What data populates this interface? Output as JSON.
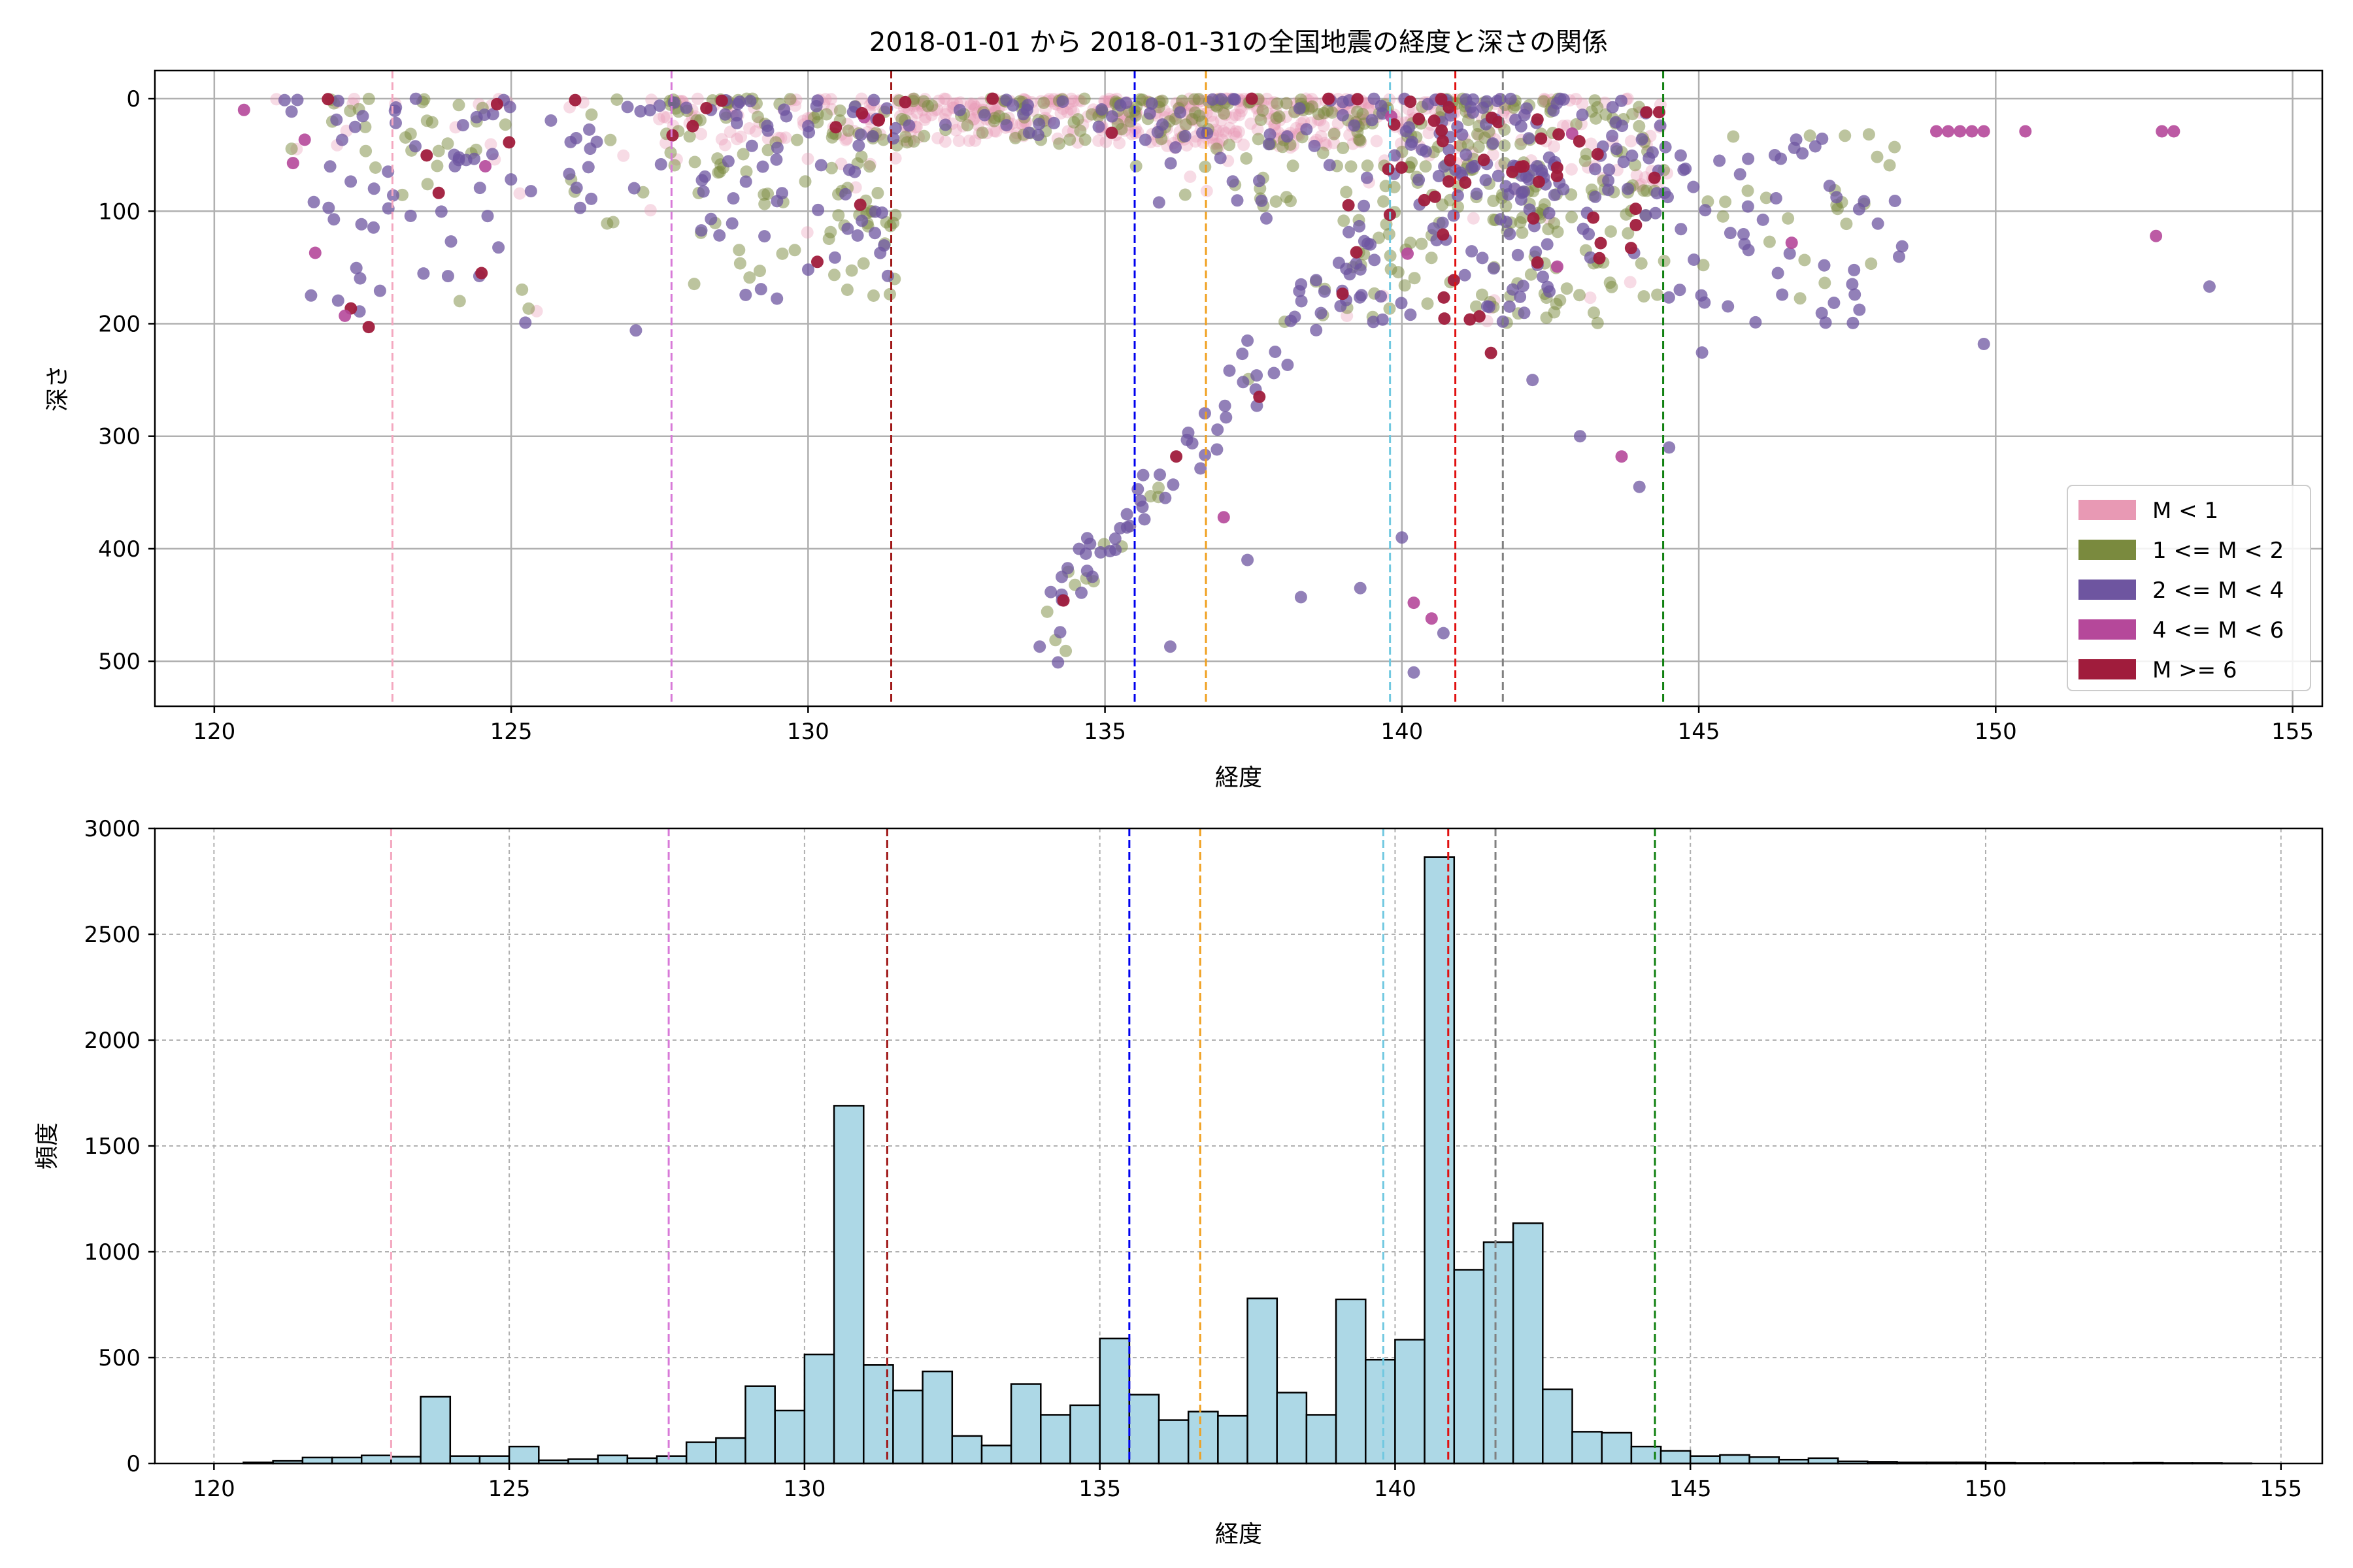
{
  "colors": {
    "hist_fill": "#add8e6",
    "hist_edge": "#000000",
    "grid": "#b0b0b0"
  },
  "chart_data": [
    {
      "type": "scatter",
      "title": "2018-01-01 から 2018-01-31の全国地震の経度と深さの関係",
      "xlabel": "経度",
      "ylabel": "深さ",
      "xlim": [
        119,
        155.5
      ],
      "ylim": [
        540,
        -25
      ],
      "y_inverted": true,
      "xticks": [
        120,
        125,
        130,
        135,
        140,
        145,
        150,
        155
      ],
      "yticks": [
        0,
        100,
        200,
        300,
        400,
        500
      ],
      "grid": "solid",
      "legend_position": "lower-right",
      "legend": [
        {
          "label": "M < 1",
          "color": "#e899b4"
        },
        {
          "label": "1 <= M < 2",
          "color": "#7a8a3e"
        },
        {
          "label": "2 <= M < 4",
          "color": "#6e55a0"
        },
        {
          "label": "4 <= M < 6",
          "color": "#b5489a"
        },
        {
          "label": "M >= 6",
          "color": "#a01c3c"
        }
      ],
      "vlines": [
        {
          "x": 123.0,
          "color": "#f4a8c0"
        },
        {
          "x": 127.7,
          "color": "#d87ad8"
        },
        {
          "x": 131.4,
          "color": "#a01818"
        },
        {
          "x": 135.5,
          "color": "#0000ee"
        },
        {
          "x": 136.7,
          "color": "#f0a020"
        },
        {
          "x": 139.8,
          "color": "#70c8e0"
        },
        {
          "x": 140.9,
          "color": "#e01010"
        },
        {
          "x": 141.7,
          "color": "#808080"
        },
        {
          "x": 144.4,
          "color": "#108010"
        }
      ],
      "clusters": [
        {
          "xr": [
            121,
            125
          ],
          "yr": [
            0,
            60
          ],
          "n": [
            15,
            25,
            25,
            2,
            4
          ]
        },
        {
          "xr": [
            121.5,
            125.5
          ],
          "yr": [
            60,
            200
          ],
          "n": [
            2,
            6,
            30,
            1,
            2
          ]
        },
        {
          "xr": [
            125.5,
            127.5
          ],
          "yr": [
            0,
            120
          ],
          "n": [
            6,
            8,
            15,
            0,
            1
          ]
        },
        {
          "xr": [
            127.5,
            131.5
          ],
          "yr": [
            0,
            60
          ],
          "n": [
            70,
            55,
            35,
            1,
            8
          ]
        },
        {
          "xr": [
            128,
            131.5
          ],
          "yr": [
            60,
            180
          ],
          "n": [
            2,
            30,
            25,
            0,
            2
          ]
        },
        {
          "xr": [
            130.5,
            131.5
          ],
          "yr": [
            100,
            180
          ],
          "n": [
            0,
            18,
            6,
            0,
            0
          ]
        },
        {
          "xr": [
            131.5,
            135.5
          ],
          "yr": [
            0,
            40
          ],
          "n": [
            160,
            60,
            20,
            0,
            3
          ]
        },
        {
          "xr": [
            135.5,
            139.5
          ],
          "yr": [
            0,
            45
          ],
          "n": [
            200,
            70,
            25,
            0,
            3
          ]
        },
        {
          "xr": [
            135.5,
            139.5
          ],
          "yr": [
            40,
            110
          ],
          "n": [
            4,
            20,
            10,
            0,
            0
          ]
        },
        {
          "xr": [
            139.5,
            141.8
          ],
          "yr": [
            0,
            60
          ],
          "n": [
            60,
            45,
            35,
            1,
            12
          ]
        },
        {
          "xr": [
            139.0,
            142.5
          ],
          "yr": [
            60,
            200
          ],
          "n": [
            6,
            60,
            55,
            1,
            20
          ]
        },
        {
          "xr": [
            141.8,
            144.5
          ],
          "yr": [
            0,
            80
          ],
          "n": [
            45,
            40,
            40,
            1,
            10
          ]
        },
        {
          "xr": [
            141.5,
            144.5
          ],
          "yr": [
            80,
            200
          ],
          "n": [
            4,
            60,
            30,
            1,
            8
          ]
        },
        {
          "xr": [
            144.5,
            148.5
          ],
          "yr": [
            30,
            180
          ],
          "n": [
            0,
            25,
            40,
            1,
            0
          ]
        },
        {
          "xr": [
            145,
            148.5
          ],
          "yr": [
            150,
            240
          ],
          "n": [
            0,
            0,
            10,
            0,
            0
          ]
        }
      ],
      "slab": [
        [
          134.0,
          485
        ],
        [
          134.5,
          430
        ],
        [
          135.0,
          400
        ],
        [
          135.5,
          370
        ],
        [
          136.0,
          340
        ],
        [
          136.8,
          290
        ],
        [
          137.5,
          240
        ],
        [
          138.2,
          200
        ],
        [
          138.8,
          160
        ],
        [
          139.3,
          130
        ]
      ],
      "deep_points": [
        {
          "x": 136.2,
          "y": 318,
          "c": 4
        },
        {
          "x": 134.3,
          "y": 446,
          "c": 4
        },
        {
          "x": 133.9,
          "y": 487,
          "c": 2
        },
        {
          "x": 136.1,
          "y": 487,
          "c": 2
        },
        {
          "x": 140.2,
          "y": 448,
          "c": 3
        },
        {
          "x": 140.5,
          "y": 462,
          "c": 3
        },
        {
          "x": 140.7,
          "y": 475,
          "c": 2
        },
        {
          "x": 140.2,
          "y": 510,
          "c": 2
        },
        {
          "x": 138.3,
          "y": 443,
          "c": 2
        },
        {
          "x": 139.3,
          "y": 435,
          "c": 2
        },
        {
          "x": 137.4,
          "y": 410,
          "c": 2
        },
        {
          "x": 140.0,
          "y": 390,
          "c": 2
        },
        {
          "x": 143.7,
          "y": 318,
          "c": 3
        },
        {
          "x": 144.0,
          "y": 345,
          "c": 2
        },
        {
          "x": 144.5,
          "y": 310,
          "c": 2
        },
        {
          "x": 143.0,
          "y": 300,
          "c": 2
        },
        {
          "x": 142.2,
          "y": 250,
          "c": 2
        },
        {
          "x": 141.5,
          "y": 226,
          "c": 4
        },
        {
          "x": 152.7,
          "y": 122,
          "c": 3
        },
        {
          "x": 153.6,
          "y": 167,
          "c": 2
        },
        {
          "x": 149.8,
          "y": 218,
          "c": 2
        },
        {
          "x": 122.2,
          "y": 193,
          "c": 3
        },
        {
          "x": 122.6,
          "y": 203,
          "c": 4
        },
        {
          "x": 121.7,
          "y": 137,
          "c": 3
        },
        {
          "x": 124.5,
          "y": 155,
          "c": 4
        },
        {
          "x": 127.1,
          "y": 206,
          "c": 2
        },
        {
          "x": 137.0,
          "y": 372,
          "c": 3
        },
        {
          "x": 137.6,
          "y": 265,
          "c": 4
        },
        {
          "x": 120.5,
          "y": 10,
          "c": 3
        },
        {
          "x": 150.5,
          "y": 29,
          "c": 3
        },
        {
          "x": 152.8,
          "y": 29,
          "c": 3
        },
        {
          "x": 153.0,
          "y": 29,
          "c": 3
        },
        {
          "x": 149.0,
          "y": 29,
          "c": 3
        },
        {
          "x": 149.2,
          "y": 29,
          "c": 3
        },
        {
          "x": 149.4,
          "y": 29,
          "c": 3
        },
        {
          "x": 149.6,
          "y": 29,
          "c": 3
        },
        {
          "x": 149.8,
          "y": 29,
          "c": 3
        }
      ]
    },
    {
      "type": "bar",
      "xlabel": "経度",
      "ylabel": "頻度",
      "xlim": [
        119,
        155.7
      ],
      "ylim": [
        0,
        3000
      ],
      "xticks": [
        120,
        125,
        130,
        135,
        140,
        145,
        150,
        155
      ],
      "yticks": [
        0,
        500,
        1000,
        1500,
        2000,
        2500,
        3000
      ],
      "grid": "dashed",
      "bin_start": 120.5,
      "bin_width": 0.5,
      "values": [
        5,
        12,
        28,
        28,
        38,
        32,
        315,
        35,
        35,
        80,
        15,
        20,
        38,
        25,
        35,
        100,
        120,
        365,
        250,
        515,
        1690,
        465,
        345,
        435,
        130,
        85,
        375,
        230,
        275,
        590,
        325,
        205,
        245,
        225,
        780,
        335,
        230,
        775,
        490,
        585,
        2865,
        915,
        1045,
        1135,
        350,
        150,
        145,
        80,
        60,
        35,
        40,
        30,
        18,
        25,
        10,
        8,
        5,
        5,
        5,
        3,
        2,
        2,
        2,
        2,
        3,
        2,
        2,
        1
      ],
      "vlines": [
        {
          "x": 123.0,
          "color": "#f4a8c0"
        },
        {
          "x": 127.7,
          "color": "#d87ad8"
        },
        {
          "x": 131.4,
          "color": "#a01818"
        },
        {
          "x": 135.5,
          "color": "#0000ee"
        },
        {
          "x": 136.7,
          "color": "#f0a020"
        },
        {
          "x": 139.8,
          "color": "#70c8e0"
        },
        {
          "x": 140.9,
          "color": "#e01010"
        },
        {
          "x": 141.7,
          "color": "#808080"
        },
        {
          "x": 144.4,
          "color": "#108010"
        }
      ]
    }
  ]
}
